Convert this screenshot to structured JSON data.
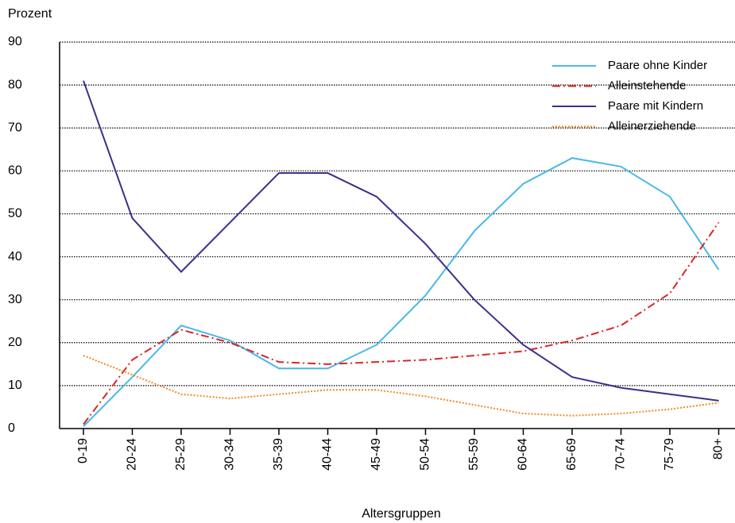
{
  "chart_data": {
    "type": "line",
    "y_label": "Prozent",
    "x_label": "Altersgruppen",
    "categories": [
      "0-19",
      "20-24",
      "25-29",
      "30-34",
      "35-39",
      "40-44",
      "45-49",
      "50-54",
      "55-59",
      "60-64",
      "65-69",
      "70-74",
      "75-79",
      "80+"
    ],
    "series": [
      {
        "name": "Paare ohne Kinder",
        "color": "#4ab8e8",
        "linestyle": "solid",
        "values": [
          0.5,
          12,
          24,
          20.5,
          14,
          14,
          19.5,
          31,
          46,
          57,
          63,
          61,
          54,
          37
        ]
      },
      {
        "name": "Alleinstehende",
        "color": "#d9262a",
        "linestyle": "dashdot",
        "values": [
          1,
          16,
          23,
          20,
          15.5,
          15,
          15.5,
          16,
          17,
          18,
          20.5,
          24,
          31.5,
          48
        ]
      },
      {
        "name": "Paare mit Kindern",
        "color": "#3d2f8a",
        "linestyle": "solid",
        "values": [
          81,
          49,
          36.5,
          48,
          59.5,
          59.5,
          54,
          43,
          30,
          19.5,
          12,
          9.5,
          8,
          6.5
        ]
      },
      {
        "name": "Alleinerziehende",
        "color": "#f08a24",
        "linestyle": "dotted",
        "values": [
          17,
          12.5,
          8,
          7,
          8,
          9,
          9,
          7.5,
          5.5,
          3.5,
          3,
          3.5,
          4.5,
          6
        ]
      }
    ],
    "ylim": [
      0,
      90
    ],
    "yticks": [
      0,
      10,
      20,
      30,
      40,
      50,
      60,
      70,
      80,
      90
    ],
    "grid": true,
    "legend": "upper right"
  }
}
